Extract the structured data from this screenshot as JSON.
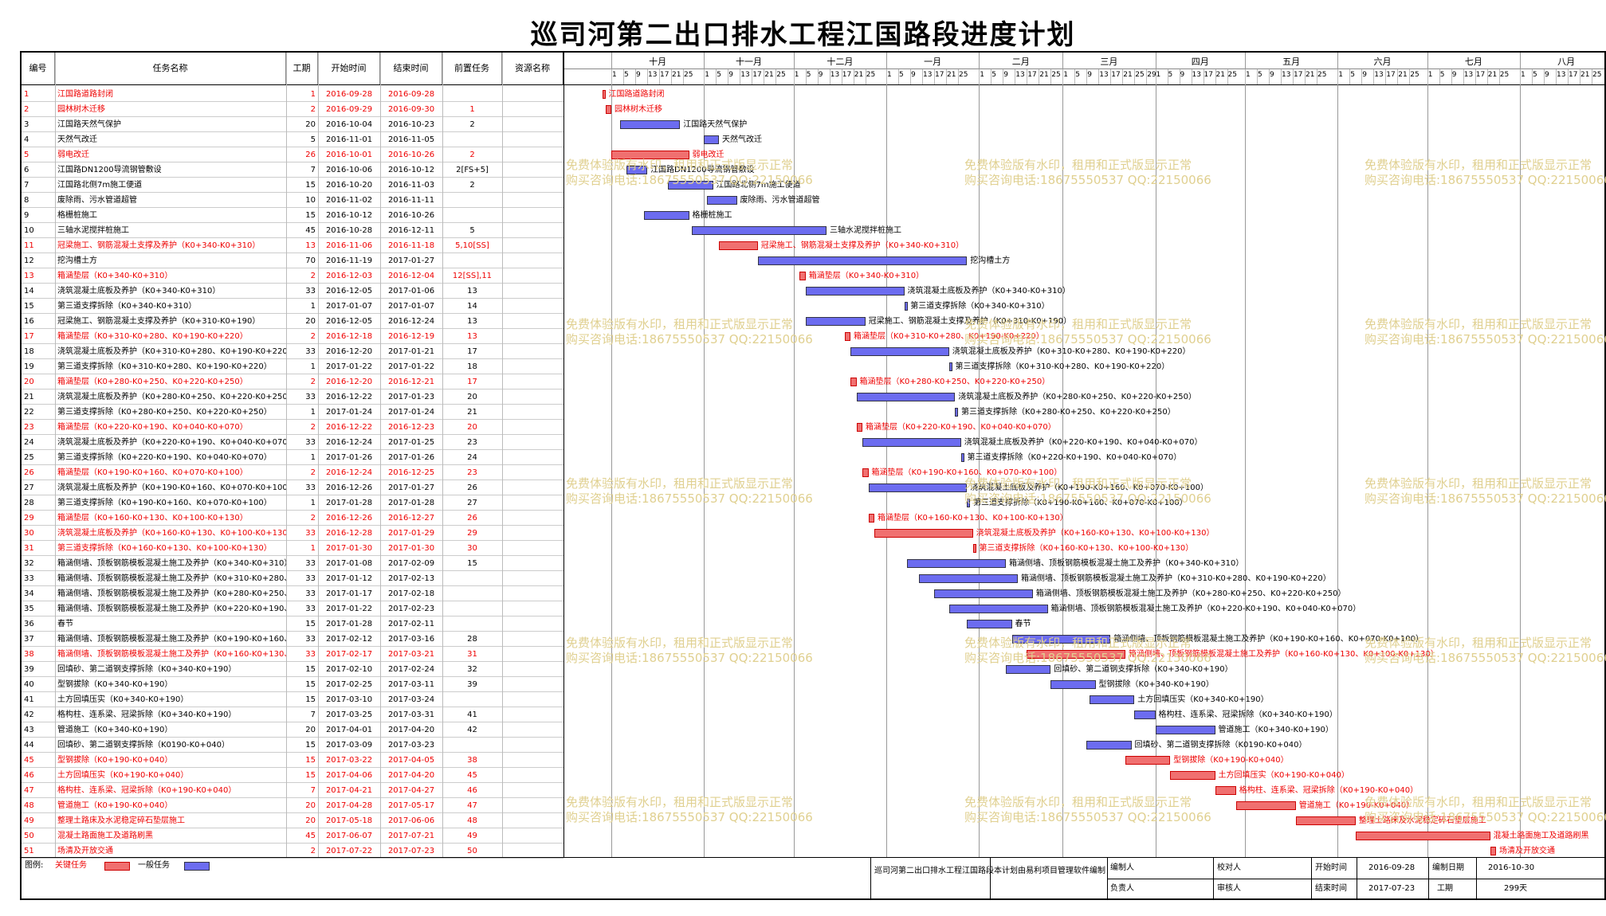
{
  "title": "巡司河第二出口排水工程江国路段进度计划",
  "columns": {
    "id": "编号",
    "name": "任务名称",
    "dur": "工期",
    "start": "开始时间",
    "end": "结束时间",
    "pred": "前置任务",
    "res": "资源名称"
  },
  "timeline": {
    "start": "2016-09-15",
    "months": [
      {
        "label": "十月",
        "start": "2016-10-01",
        "end": "2016-11-01",
        "days": [
          "1",
          "5",
          "9",
          "13",
          "17",
          "21",
          "25"
        ]
      },
      {
        "label": "十一月",
        "start": "2016-11-01",
        "end": "2016-12-01",
        "days": [
          "1",
          "5",
          "9",
          "13",
          "17",
          "21",
          "25"
        ]
      },
      {
        "label": "十二月",
        "start": "2016-12-01",
        "end": "2017-01-01",
        "days": [
          "1",
          "5",
          "9",
          "13",
          "17",
          "21",
          "25"
        ]
      },
      {
        "label": "一月",
        "start": "2017-01-01",
        "end": "2017-02-01",
        "days": [
          "1",
          "5",
          "9",
          "13",
          "17",
          "21",
          "25"
        ]
      },
      {
        "label": "二月",
        "start": "2017-02-01",
        "end": "2017-03-01",
        "days": [
          "1",
          "5",
          "9",
          "13",
          "17",
          "21",
          "25"
        ]
      },
      {
        "label": "三月",
        "start": "2017-03-01",
        "end": "2017-04-01",
        "days": [
          "1",
          "5",
          "9",
          "13",
          "17",
          "21",
          "25",
          "29"
        ]
      },
      {
        "label": "四月",
        "start": "2017-04-01",
        "end": "2017-05-01",
        "days": [
          "1",
          "5",
          "9",
          "13",
          "17",
          "21",
          "25"
        ]
      },
      {
        "label": "五月",
        "start": "2017-05-01",
        "end": "2017-06-01",
        "days": [
          "1",
          "5",
          "9",
          "13",
          "17",
          "21",
          "25"
        ]
      },
      {
        "label": "六月",
        "start": "2017-06-01",
        "end": "2017-07-01",
        "days": [
          "1",
          "5",
          "9",
          "13",
          "17",
          "21",
          "25"
        ]
      },
      {
        "label": "七月",
        "start": "2017-07-01",
        "end": "2017-08-01",
        "days": [
          "1",
          "5",
          "9",
          "13",
          "17",
          "21",
          "25"
        ]
      },
      {
        "label": "八月",
        "start": "2017-08-01",
        "end": "2017-09-01",
        "days": [
          "1",
          "5",
          "9",
          "13",
          "17",
          "21",
          "25"
        ]
      }
    ]
  },
  "chart_data": {
    "type": "gantt",
    "title": "巡司河第二出口排水工程江国路段进度计划",
    "tasks": [
      {
        "id": "1",
        "name": "江国路道路封闭",
        "dur": "1",
        "start": "2016-09-28",
        "end": "2016-09-28",
        "pred": "",
        "crit": true,
        "label": "江国路道路封闭"
      },
      {
        "id": "2",
        "name": "园林树木迁移",
        "dur": "2",
        "start": "2016-09-29",
        "end": "2016-09-30",
        "pred": "1",
        "crit": true,
        "label": "园林树木迁移"
      },
      {
        "id": "3",
        "name": "江国路天然气保护",
        "dur": "20",
        "start": "2016-10-04",
        "end": "2016-10-23",
        "pred": "2",
        "crit": false,
        "label": "江国路天然气保护"
      },
      {
        "id": "4",
        "name": "天然气改迁",
        "dur": "5",
        "start": "2016-11-01",
        "end": "2016-11-05",
        "pred": "",
        "crit": false,
        "label": "天然气改迁"
      },
      {
        "id": "5",
        "name": "弱电改迁",
        "dur": "26",
        "start": "2016-10-01",
        "end": "2016-10-26",
        "pred": "2",
        "crit": true,
        "label": "弱电改迁"
      },
      {
        "id": "6",
        "name": "江国路DN1200导流钢管敷设",
        "dur": "7",
        "start": "2016-10-06",
        "end": "2016-10-12",
        "pred": "2[FS+5]",
        "crit": false,
        "label": "江国路DN1200导流钢管敷设"
      },
      {
        "id": "7",
        "name": "江国路北侧7m施工便道",
        "dur": "15",
        "start": "2016-10-20",
        "end": "2016-11-03",
        "pred": "2",
        "crit": false,
        "label": "江国路北侧7m施工便道"
      },
      {
        "id": "8",
        "name": "废除雨、污水管道超管",
        "dur": "10",
        "start": "2016-11-02",
        "end": "2016-11-11",
        "pred": "",
        "crit": false,
        "label": "废除雨、污水管道超管"
      },
      {
        "id": "9",
        "name": "格栅桩施工",
        "dur": "15",
        "start": "2016-10-12",
        "end": "2016-10-26",
        "pred": "",
        "crit": false,
        "label": "格栅桩施工"
      },
      {
        "id": "10",
        "name": "三轴水泥搅拌桩施工",
        "dur": "45",
        "start": "2016-10-28",
        "end": "2016-12-11",
        "pred": "5",
        "crit": false,
        "label": "三轴水泥搅拌桩施工"
      },
      {
        "id": "11",
        "name": "冠梁施工、钢筋混凝土支撑及养护（K0+340-K0+310）",
        "dur": "13",
        "start": "2016-11-06",
        "end": "2016-11-18",
        "pred": "5,10[SS]",
        "crit": true,
        "label": "冠梁施工、钢筋混凝土支撑及养护（K0+340-K0+310）"
      },
      {
        "id": "12",
        "name": "挖沟槽土方",
        "dur": "70",
        "start": "2016-11-19",
        "end": "2017-01-27",
        "pred": "",
        "crit": false,
        "label": "挖沟槽土方"
      },
      {
        "id": "13",
        "name": "箱涵垫层（K0+340-K0+310）",
        "dur": "2",
        "start": "2016-12-03",
        "end": "2016-12-04",
        "pred": "12[SS],11",
        "crit": true,
        "label": "箱涵垫层（K0+340-K0+310）"
      },
      {
        "id": "14",
        "name": "浇筑混凝土底板及养护（K0+340-K0+310）",
        "dur": "33",
        "start": "2016-12-05",
        "end": "2017-01-06",
        "pred": "13",
        "crit": false,
        "label": "浇筑混凝土底板及养护（K0+340-K0+310）"
      },
      {
        "id": "15",
        "name": "第三道支撑拆除（K0+340-K0+310）",
        "dur": "1",
        "start": "2017-01-07",
        "end": "2017-01-07",
        "pred": "14",
        "crit": false,
        "label": "第三道支撑拆除（K0+340-K0+310）"
      },
      {
        "id": "16",
        "name": "冠梁施工、钢筋混凝土支撑及养护（K0+310-K0+190）",
        "dur": "20",
        "start": "2016-12-05",
        "end": "2016-12-24",
        "pred": "13",
        "crit": false,
        "label": "冠梁施工、钢筋混凝土支撑及养护（K0+310-K0+190）"
      },
      {
        "id": "17",
        "name": "箱涵垫层（K0+310-K0+280、K0+190-K0+220）",
        "dur": "2",
        "start": "2016-12-18",
        "end": "2016-12-19",
        "pred": "13",
        "crit": true,
        "label": "箱涵垫层（K0+310-K0+280、K0+190-K0+220）"
      },
      {
        "id": "18",
        "name": "浇筑混凝土底板及养护（K0+310-K0+280、K0+190-K0+220）",
        "dur": "33",
        "start": "2016-12-20",
        "end": "2017-01-21",
        "pred": "17",
        "crit": false,
        "label": "浇筑混凝土底板及养护（K0+310-K0+280、K0+190-K0+220）"
      },
      {
        "id": "19",
        "name": "第三道支撑拆除（K0+310-K0+280、K0+190-K0+220）",
        "dur": "1",
        "start": "2017-01-22",
        "end": "2017-01-22",
        "pred": "18",
        "crit": false,
        "label": "第三道支撑拆除（K0+310-K0+280、K0+190-K0+220）"
      },
      {
        "id": "20",
        "name": "箱涵垫层（K0+280-K0+250、K0+220-K0+250）",
        "dur": "2",
        "start": "2016-12-20",
        "end": "2016-12-21",
        "pred": "17",
        "crit": true,
        "label": "箱涵垫层（K0+280-K0+250、K0+220-K0+250）"
      },
      {
        "id": "21",
        "name": "浇筑混凝土底板及养护（K0+280-K0+250、K0+220-K0+250）",
        "dur": "33",
        "start": "2016-12-22",
        "end": "2017-01-23",
        "pred": "20",
        "crit": false,
        "label": "浇筑混凝土底板及养护（K0+280-K0+250、K0+220-K0+250）"
      },
      {
        "id": "22",
        "name": "第三道支撑拆除（K0+280-K0+250、K0+220-K0+250）",
        "dur": "1",
        "start": "2017-01-24",
        "end": "2017-01-24",
        "pred": "21",
        "crit": false,
        "label": "第三道支撑拆除（K0+280-K0+250、K0+220-K0+250）"
      },
      {
        "id": "23",
        "name": "箱涵垫层（K0+220-K0+190、K0+040-K0+070）",
        "dur": "2",
        "start": "2016-12-22",
        "end": "2016-12-23",
        "pred": "20",
        "crit": true,
        "label": "箱涵垫层（K0+220-K0+190、K0+040-K0+070）"
      },
      {
        "id": "24",
        "name": "浇筑混凝土底板及养护（K0+220-K0+190、K0+040-K0+070）",
        "dur": "33",
        "start": "2016-12-24",
        "end": "2017-01-25",
        "pred": "23",
        "crit": false,
        "label": "浇筑混凝土底板及养护（K0+220-K0+190、K0+040-K0+070）"
      },
      {
        "id": "25",
        "name": "第三道支撑拆除（K0+220-K0+190、K0+040-K0+070）",
        "dur": "1",
        "start": "2017-01-26",
        "end": "2017-01-26",
        "pred": "24",
        "crit": false,
        "label": "第三道支撑拆除（K0+220-K0+190、K0+040-K0+070）"
      },
      {
        "id": "26",
        "name": "箱涵垫层（K0+190-K0+160、K0+070-K0+100）",
        "dur": "2",
        "start": "2016-12-24",
        "end": "2016-12-25",
        "pred": "23",
        "crit": true,
        "label": "箱涵垫层（K0+190-K0+160、K0+070-K0+100）"
      },
      {
        "id": "27",
        "name": "浇筑混凝土底板及养护（K0+190-K0+160、K0+070-K0+100）",
        "dur": "33",
        "start": "2016-12-26",
        "end": "2017-01-27",
        "pred": "26",
        "crit": false,
        "label": "浇筑混凝土底板及养护（K0+190-K0+160、K0+070-K0+100）"
      },
      {
        "id": "28",
        "name": "第三道支撑拆除（K0+190-K0+160、K0+070-K0+100）",
        "dur": "1",
        "start": "2017-01-28",
        "end": "2017-01-28",
        "pred": "27",
        "crit": false,
        "label": "第三道支撑拆除（K0+190-K0+160、K0+070-K0+100）"
      },
      {
        "id": "29",
        "name": "箱涵垫层（K0+160-K0+130、K0+100-K0+130）",
        "dur": "2",
        "start": "2016-12-26",
        "end": "2016-12-27",
        "pred": "26",
        "crit": true,
        "label": "箱涵垫层（K0+160-K0+130、K0+100-K0+130）"
      },
      {
        "id": "30",
        "name": "浇筑混凝土底板及养护（K0+160-K0+130、K0+100-K0+130）",
        "dur": "33",
        "start": "2016-12-28",
        "end": "2017-01-29",
        "pred": "29",
        "crit": true,
        "label": "浇筑混凝土底板及养护（K0+160-K0+130、K0+100-K0+130）"
      },
      {
        "id": "31",
        "name": "第三道支撑拆除（K0+160-K0+130、K0+100-K0+130）",
        "dur": "1",
        "start": "2017-01-30",
        "end": "2017-01-30",
        "pred": "30",
        "crit": true,
        "label": "第三道支撑拆除（K0+160-K0+130、K0+100-K0+130）"
      },
      {
        "id": "32",
        "name": "箱涵侧墙、顶板钢筋模板混凝土施工及养护（K0+340-K0+310）",
        "dur": "33",
        "start": "2017-01-08",
        "end": "2017-02-09",
        "pred": "15",
        "crit": false,
        "label": "箱涵侧墙、顶板钢筋模板混凝土施工及养护（K0+340-K0+310）"
      },
      {
        "id": "33",
        "name": "箱涵侧墙、顶板钢筋模板混凝土施工及养护（K0+310-K0+280、K0+190-K0+220）",
        "dur": "33",
        "start": "2017-01-12",
        "end": "2017-02-13",
        "pred": "",
        "crit": false,
        "label": "箱涵侧墙、顶板钢筋模板混凝土施工及养护（K0+310-K0+280、K0+190-K0+220）"
      },
      {
        "id": "34",
        "name": "箱涵侧墙、顶板钢筋模板混凝土施工及养护（K0+280-K0+250、K0+220-K0+250）",
        "dur": "33",
        "start": "2017-01-17",
        "end": "2017-02-18",
        "pred": "",
        "crit": false,
        "label": "箱涵侧墙、顶板钢筋模板混凝土施工及养护（K0+280-K0+250、K0+220-K0+250）"
      },
      {
        "id": "35",
        "name": "箱涵侧墙、顶板钢筋模板混凝土施工及养护（K0+220-K0+190、K0+040-K0+070）",
        "dur": "33",
        "start": "2017-01-22",
        "end": "2017-02-23",
        "pred": "",
        "crit": false,
        "label": "箱涵侧墙、顶板钢筋模板混凝土施工及养护（K0+220-K0+190、K0+040-K0+070）"
      },
      {
        "id": "36",
        "name": "春节",
        "dur": "15",
        "start": "2017-01-28",
        "end": "2017-02-11",
        "pred": "",
        "crit": false,
        "label": "春节"
      },
      {
        "id": "37",
        "name": "箱涵侧墙、顶板钢筋模板混凝土施工及养护（K0+190-K0+160、K0+070-K0+100）",
        "dur": "33",
        "start": "2017-02-12",
        "end": "2017-03-16",
        "pred": "28",
        "crit": false,
        "label": "箱涵侧墙、顶板钢筋模板混凝土施工及养护（K0+190-K0+160、K0+070-K0+100）"
      },
      {
        "id": "38",
        "name": "箱涵侧墙、顶板钢筋模板混凝土施工及养护（K0+160-K0+130、K0+100-K0+130）",
        "dur": "33",
        "start": "2017-02-17",
        "end": "2017-03-21",
        "pred": "31",
        "crit": true,
        "label": "箱涵侧墙、顶板钢筋模板混凝土施工及养护（K0+160-K0+130、K0+100-K0+130）"
      },
      {
        "id": "39",
        "name": "回填砂、第二道钢支撑拆除（K0+340-K0+190）",
        "dur": "15",
        "start": "2017-02-10",
        "end": "2017-02-24",
        "pred": "32",
        "crit": false,
        "label": "回填砂、第二道钢支撑拆除（K0+340-K0+190）"
      },
      {
        "id": "40",
        "name": "型钢拔除（K0+340-K0+190）",
        "dur": "15",
        "start": "2017-02-25",
        "end": "2017-03-11",
        "pred": "39",
        "crit": false,
        "label": "型钢拔除（K0+340-K0+190）"
      },
      {
        "id": "41",
        "name": "土方回填压实（K0+340-K0+190）",
        "dur": "15",
        "start": "2017-03-10",
        "end": "2017-03-24",
        "pred": "",
        "crit": false,
        "label": "土方回填压实（K0+340-K0+190）"
      },
      {
        "id": "42",
        "name": "格构柱、连系梁、冠梁拆除（K0+340-K0+190）",
        "dur": "7",
        "start": "2017-03-25",
        "end": "2017-03-31",
        "pred": "41",
        "crit": false,
        "label": "格构柱、连系梁、冠梁拆除（K0+340-K0+190）"
      },
      {
        "id": "43",
        "name": "管道施工（K0+340-K0+190）",
        "dur": "20",
        "start": "2017-04-01",
        "end": "2017-04-20",
        "pred": "42",
        "crit": false,
        "label": "管道施工（K0+340-K0+190）"
      },
      {
        "id": "44",
        "name": "回填砂、第二道钢支撑拆除（K0190-K0+040）",
        "dur": "15",
        "start": "2017-03-09",
        "end": "2017-03-23",
        "pred": "",
        "crit": false,
        "label": "回填砂、第二道钢支撑拆除（K0190-K0+040）"
      },
      {
        "id": "45",
        "name": "型钢拔除（K0+190-K0+040）",
        "dur": "15",
        "start": "2017-03-22",
        "end": "2017-04-05",
        "pred": "38",
        "crit": true,
        "label": "型钢拔除（K0+190-K0+040）"
      },
      {
        "id": "46",
        "name": "土方回填压实（K0+190-K0+040）",
        "dur": "15",
        "start": "2017-04-06",
        "end": "2017-04-20",
        "pred": "45",
        "crit": true,
        "label": "土方回填压实（K0+190-K0+040）"
      },
      {
        "id": "47",
        "name": "格构柱、连系梁、冠梁拆除（K0+190-K0+040）",
        "dur": "7",
        "start": "2017-04-21",
        "end": "2017-04-27",
        "pred": "46",
        "crit": true,
        "label": "格构柱、连系梁、冠梁拆除（K0+190-K0+040）"
      },
      {
        "id": "48",
        "name": "管道施工（K0+190-K0+040）",
        "dur": "20",
        "start": "2017-04-28",
        "end": "2017-05-17",
        "pred": "47",
        "crit": true,
        "label": "管道施工（K0+190-K0+040）"
      },
      {
        "id": "49",
        "name": "整理土路床及水泥稳定碎石垫层施工",
        "dur": "20",
        "start": "2017-05-18",
        "end": "2017-06-06",
        "pred": "48",
        "crit": true,
        "label": "整理土路床及水泥稳定碎石垫层施工"
      },
      {
        "id": "50",
        "name": "混凝土路面施工及道路刷黑",
        "dur": "45",
        "start": "2017-06-07",
        "end": "2017-07-21",
        "pred": "49",
        "crit": true,
        "label": "混凝土路面施工及道路刷黑"
      },
      {
        "id": "51",
        "name": "场清及开放交通",
        "dur": "2",
        "start": "2017-07-22",
        "end": "2017-07-23",
        "pred": "50",
        "crit": true,
        "label": "场清及开放交通"
      }
    ]
  },
  "watermark": {
    "line1": "免费体验版有水印，租用和正式版显示正常",
    "line2": "购买咨询电话:18675550537 QQ:22150066"
  },
  "footer": {
    "legend_label": "图例:",
    "legend_crit": "关键任务",
    "legend_norm": "一般任务",
    "project": "巡司河第二出口排水工程江国路段",
    "software": "本计划由易利项目管理软件编制",
    "editor_label": "编制人",
    "checker_label": "校对人",
    "owner_label": "负责人",
    "auditor_label": "审核人",
    "start_label": "开始时间",
    "start_value": "2016-09-28",
    "end_label": "结束时间",
    "end_value": "2017-07-23",
    "made_label": "编制日期",
    "made_value": "2016-10-30",
    "period_label": "工期",
    "period_value": "299天"
  },
  "colors": {
    "critical": "#f07070",
    "normal": "#6c6cf0",
    "critical_text": "#e00000"
  }
}
